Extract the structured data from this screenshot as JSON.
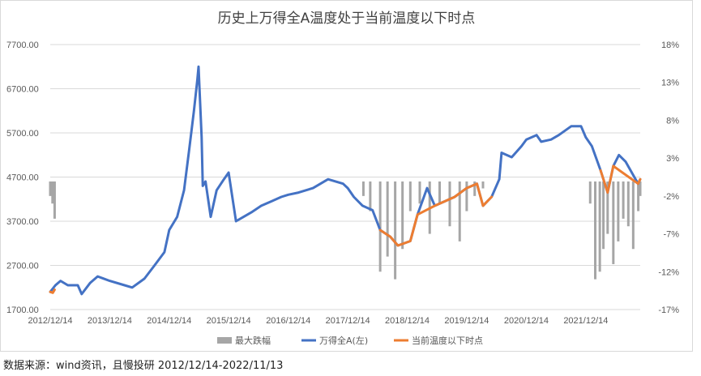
{
  "chart_data": {
    "type": "line",
    "title": "历史上万得全A温度处于当前温度以下时点",
    "x_tick_labels": [
      "2012/12/14",
      "2013/12/14",
      "2014/12/14",
      "2015/12/14",
      "2016/12/14",
      "2017/12/14",
      "2018/12/14",
      "2019/12/14",
      "2020/12/14",
      "2021/12/14"
    ],
    "x_range": [
      "2012/12/14",
      "2022/11/13"
    ],
    "y_left": {
      "ticks": [
        "1700.00",
        "2700.00",
        "3700.00",
        "4700.00",
        "5700.00",
        "6700.00",
        "7700.00"
      ],
      "ylim": [
        1700,
        7700
      ]
    },
    "y_right": {
      "ticks": [
        "-17%",
        "-12%",
        "-7%",
        "-2%",
        "3%",
        "8%",
        "13%",
        "18%"
      ],
      "ylim": [
        -17,
        18
      ]
    },
    "grid": true,
    "legend_position": "bottom",
    "legend": [
      "最大跌幅",
      "万得全A(左)",
      "当前温度以下时点"
    ],
    "colors": {
      "bars": "#a6a6a6",
      "index": "#4472c4",
      "below": "#ed7d31"
    },
    "series": [
      {
        "name": "万得全A(左)",
        "axis": "left",
        "kind": "line",
        "x": [
          "2012/12/14",
          "2013/01/15",
          "2013/02/15",
          "2013/04/01",
          "2013/06/01",
          "2013/06/25",
          "2013/08/15",
          "2013/10/01",
          "2013/12/14",
          "2014/03/15",
          "2014/05/01",
          "2014/07/15",
          "2014/09/15",
          "2014/11/15",
          "2014/12/14",
          "2015/02/01",
          "2015/03/15",
          "2015/04/15",
          "2015/05/15",
          "2015/06/05",
          "2015/06/12",
          "2015/07/01",
          "2015/07/08",
          "2015/07/25",
          "2015/08/26",
          "2015/10/01",
          "2015/11/15",
          "2015/12/14",
          "2016/01/28",
          "2016/03/15",
          "2016/05/01",
          "2016/07/01",
          "2016/09/01",
          "2016/11/01",
          "2016/12/14",
          "2017/02/15",
          "2017/05/15",
          "2017/08/15",
          "2017/11/15",
          "2017/12/14",
          "2018/01/20",
          "2018/03/15",
          "2018/05/15",
          "2018/07/01",
          "2018/09/01",
          "2018/10/18",
          "2019/01/02",
          "2019/02/15",
          "2019/04/15",
          "2019/06/01",
          "2019/08/01",
          "2019/10/01",
          "2019/12/14",
          "2020/02/15",
          "2020/03/23",
          "2020/05/15",
          "2020/07/01",
          "2020/07/15",
          "2020/09/15",
          "2020/11/15",
          "2020/12/14",
          "2021/02/15",
          "2021/03/15",
          "2021/05/15",
          "2021/07/01",
          "2021/09/15",
          "2021/11/15",
          "2021/12/14",
          "2022/01/20",
          "2022/03/15",
          "2022/04/27",
          "2022/06/01",
          "2022/07/05",
          "2022/08/15",
          "2022/10/31",
          "2022/11/13"
        ],
        "values": [
          2100,
          2250,
          2350,
          2250,
          2250,
          2050,
          2300,
          2450,
          2350,
          2250,
          2200,
          2400,
          2700,
          3000,
          3500,
          3800,
          4400,
          5300,
          6200,
          6900,
          7200,
          5600,
          4500,
          4600,
          3800,
          4400,
          4650,
          4800,
          3700,
          3800,
          3900,
          4050,
          4150,
          4250,
          4300,
          4350,
          4450,
          4650,
          4550,
          4450,
          4250,
          4050,
          3950,
          3500,
          3350,
          3150,
          3250,
          3850,
          4450,
          4050,
          4150,
          4250,
          4450,
          4550,
          4050,
          4250,
          4650,
          5250,
          5150,
          5400,
          5550,
          5650,
          5500,
          5550,
          5650,
          5850,
          5850,
          5600,
          5400,
          4850,
          4350,
          4950,
          5200,
          5050,
          4550,
          4650
        ]
      },
      {
        "name": "当前温度以下时点",
        "axis": "left",
        "kind": "line",
        "x": [
          "2012/12/14",
          "2012/12/30",
          "2013/01/10",
          "2018/07/01",
          "2018/09/01",
          "2018/10/18",
          "2019/01/02",
          "2019/02/15",
          "2019/06/01",
          "2019/08/01",
          "2019/10/01",
          "2019/12/14",
          "2020/02/15",
          "2020/03/23",
          "2020/05/15",
          "2022/03/15",
          "2022/04/27",
          "2022/06/01",
          "2022/10/31",
          "2022/11/13"
        ],
        "values": [
          2100,
          2080,
          2150,
          3500,
          3350,
          3150,
          3250,
          3850,
          4050,
          4150,
          4250,
          4450,
          4550,
          4050,
          4250,
          4850,
          4350,
          4950,
          4550,
          4650
        ]
      },
      {
        "name": "最大跌幅",
        "axis": "right",
        "kind": "bar",
        "x": [
          "2012/12/14",
          "2012/12/28",
          "2013/01/10",
          "2018/03/20",
          "2018/05/01",
          "2018/07/01",
          "2018/08/15",
          "2018/10/01",
          "2018/11/15",
          "2019/01/02",
          "2019/03/01",
          "2019/05/01",
          "2019/07/01",
          "2019/09/01",
          "2019/11/01",
          "2019/12/14",
          "2020/02/01",
          "2020/03/23",
          "2022/01/10",
          "2022/02/10",
          "2022/03/10",
          "2022/04/01",
          "2022/04/27",
          "2022/06/01",
          "2022/07/01",
          "2022/08/01",
          "2022/09/01",
          "2022/10/01",
          "2022/11/01",
          "2022/11/13"
        ],
        "values": [
          -2,
          -3,
          -5,
          -2,
          -4,
          -12,
          -10,
          -13,
          -9,
          -4,
          -3,
          -7,
          -3,
          -6,
          -8,
          -4,
          -2,
          -1,
          -3,
          -13,
          -12,
          -9,
          -7,
          -11,
          -8,
          -5,
          -6,
          -9,
          -4,
          -2
        ]
      }
    ]
  },
  "source": "数据来源：wind资讯，且慢投研  2012/12/14-2022/11/13"
}
